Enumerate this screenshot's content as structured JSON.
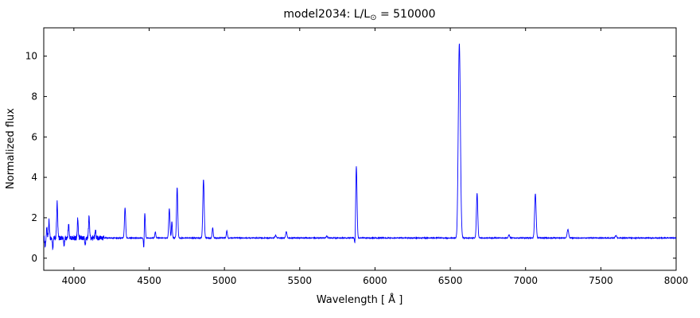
{
  "title": {
    "prefix": "model2034: L/L",
    "sub": "⊙",
    "suffix": " = 510000"
  },
  "chart_data": {
    "type": "line",
    "title": "model2034: L/L⊙ = 510000",
    "xlabel": "Wavelength [ Å ]",
    "ylabel": "Normalized flux",
    "xlim": [
      3800,
      8000
    ],
    "ylim": [
      -0.6,
      11.4
    ],
    "xticks": [
      4000,
      4500,
      5000,
      5500,
      6000,
      6500,
      7000,
      7500,
      8000
    ],
    "yticks": [
      0,
      2,
      4,
      6,
      8,
      10
    ],
    "legend": null,
    "grid": false,
    "line_color": "#0000ff",
    "continuum": 1.0,
    "peaks": [
      {
        "x": 3820,
        "height": 0.45,
        "sigma": 3
      },
      {
        "x": 3835,
        "height": 0.85,
        "sigma": 3
      },
      {
        "x": 3889,
        "height": 1.75,
        "sigma": 3.5
      },
      {
        "x": 3965,
        "height": 0.75,
        "sigma": 3
      },
      {
        "x": 4026,
        "height": 0.95,
        "sigma": 3
      },
      {
        "x": 4101,
        "height": 1.05,
        "sigma": 3.5
      },
      {
        "x": 4144,
        "height": 0.45,
        "sigma": 3
      },
      {
        "x": 4340,
        "height": 1.5,
        "sigma": 4
      },
      {
        "x": 4471,
        "height": 1.25,
        "sigma": 3.5
      },
      {
        "x": 4541,
        "height": 0.3,
        "sigma": 3.5
      },
      {
        "x": 4634,
        "height": 1.45,
        "sigma": 4
      },
      {
        "x": 4651,
        "height": 0.8,
        "sigma": 3
      },
      {
        "x": 4686,
        "height": 2.5,
        "sigma": 4
      },
      {
        "x": 4861,
        "height": 2.9,
        "sigma": 4.5
      },
      {
        "x": 4922,
        "height": 0.5,
        "sigma": 3.5
      },
      {
        "x": 5016,
        "height": 0.35,
        "sigma": 3.5
      },
      {
        "x": 5340,
        "height": 0.12,
        "sigma": 4
      },
      {
        "x": 5411,
        "height": 0.32,
        "sigma": 4
      },
      {
        "x": 5680,
        "height": 0.1,
        "sigma": 4
      },
      {
        "x": 5876,
        "height": 3.55,
        "sigma": 4.5
      },
      {
        "x": 6560,
        "height": 9.6,
        "sigma": 7
      },
      {
        "x": 6678,
        "height": 2.2,
        "sigma": 4.5
      },
      {
        "x": 6890,
        "height": 0.15,
        "sigma": 4
      },
      {
        "x": 7065,
        "height": 2.2,
        "sigma": 5
      },
      {
        "x": 7281,
        "height": 0.42,
        "sigma": 5
      },
      {
        "x": 7600,
        "height": 0.12,
        "sigma": 5
      }
    ],
    "dips": [
      {
        "x": 3810,
        "depth": 0.4,
        "sigma": 3
      },
      {
        "x": 3860,
        "depth": 0.5,
        "sigma": 3
      },
      {
        "x": 3935,
        "depth": 0.35,
        "sigma": 3
      },
      {
        "x": 4075,
        "depth": 0.35,
        "sigma": 3
      },
      {
        "x": 4465,
        "depth": 0.7,
        "sigma": 2.5
      },
      {
        "x": 5868,
        "depth": 0.65,
        "sigma": 3
      },
      {
        "x": 6545,
        "depth": 0.15,
        "sigma": 4
      }
    ],
    "noise_regions": [
      {
        "range": [
          3800,
          4200
        ],
        "amplitude": 0.12
      },
      {
        "range": [
          4200,
          8000
        ],
        "amplitude": 0.02
      }
    ]
  }
}
